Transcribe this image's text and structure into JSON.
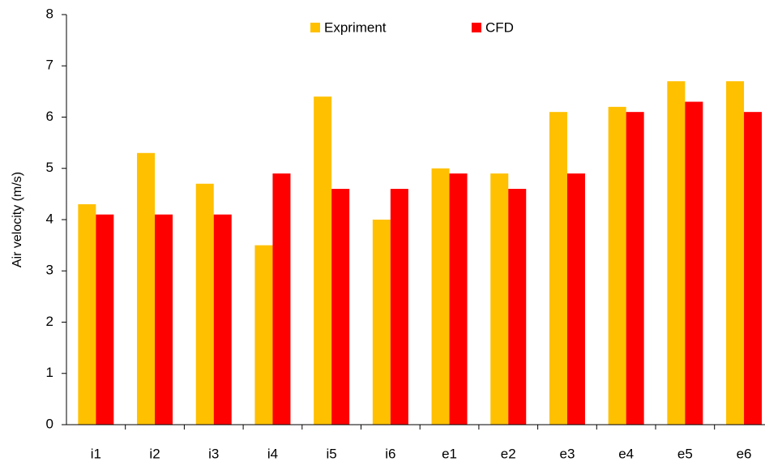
{
  "chart_data": {
    "type": "bar",
    "y_label": "Air velocity (m/s)",
    "categories": [
      "i1",
      "i2",
      "i3",
      "i4",
      "i5",
      "i6",
      "e1",
      "e2",
      "e3",
      "e4",
      "e5",
      "e6"
    ],
    "series": [
      {
        "name": "Expriment",
        "color": "#FFC000",
        "values": [
          4.3,
          5.3,
          4.7,
          3.5,
          6.4,
          4.0,
          5.0,
          4.9,
          6.1,
          6.2,
          6.7,
          6.7
        ]
      },
      {
        "name": "CFD",
        "color": "#FF0000",
        "values": [
          4.1,
          4.1,
          4.1,
          4.9,
          4.6,
          4.6,
          4.9,
          4.6,
          4.9,
          6.1,
          6.3,
          6.1
        ]
      }
    ],
    "ylim": [
      0,
      8
    ],
    "yticks": [
      0,
      1,
      2,
      3,
      4,
      5,
      6,
      7,
      8
    ],
    "grid": false,
    "legend": "top"
  }
}
